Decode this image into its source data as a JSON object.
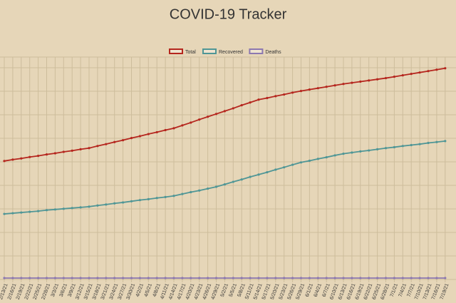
{
  "chart_data": {
    "type": "line",
    "title": "COVID-19 Tracker",
    "categories": [
      "2/13/21",
      "2/16/21",
      "2/19/21",
      "2/22/21",
      "2/25/21",
      "2/28/21",
      "3/3/21",
      "3/6/21",
      "3/9/21",
      "3/12/21",
      "3/15/21",
      "3/18/21",
      "3/21/21",
      "3/24/21",
      "3/27/21",
      "3/30/21",
      "4/2/21",
      "4/5/21",
      "4/8/21",
      "4/11/21",
      "4/14/21",
      "4/17/21",
      "4/20/21",
      "4/23/21",
      "4/26/21",
      "4/29/21",
      "5/2/21",
      "5/5/21",
      "5/8/21",
      "5/11/21",
      "5/14/21",
      "5/17/21",
      "5/20/21",
      "5/23/21",
      "5/26/21",
      "5/29/21",
      "6/1/21",
      "6/4/21",
      "6/7/21",
      "6/10/21",
      "6/13/21",
      "6/16/21",
      "6/19/21",
      "6/22/21",
      "6/25/21",
      "6/28/21",
      "7/1/21",
      "7/4/21",
      "7/7/21",
      "7/10/21",
      "7/13/21",
      "7/16/21",
      "7/19/21"
    ],
    "series": [
      {
        "name": "Total",
        "color": "#b5261e",
        "values": [
          5.06,
          5.12,
          5.17,
          5.23,
          5.28,
          5.34,
          5.39,
          5.45,
          5.5,
          5.56,
          5.61,
          5.7,
          5.78,
          5.87,
          5.95,
          6.04,
          6.12,
          6.21,
          6.29,
          6.38,
          6.46,
          6.58,
          6.7,
          6.83,
          6.95,
          7.07,
          7.19,
          7.31,
          7.44,
          7.56,
          7.68,
          7.75,
          7.83,
          7.9,
          7.98,
          8.05,
          8.11,
          8.17,
          8.23,
          8.29,
          8.35,
          8.4,
          8.45,
          8.5,
          8.55,
          8.6,
          8.66,
          8.72,
          8.78,
          8.84,
          8.9,
          8.96,
          9.02
        ]
      },
      {
        "name": "Recovered",
        "color": "#4f9696",
        "values": [
          2.8,
          2.83,
          2.86,
          2.89,
          2.92,
          2.96,
          2.99,
          3.02,
          3.05,
          3.08,
          3.11,
          3.16,
          3.2,
          3.25,
          3.29,
          3.34,
          3.39,
          3.43,
          3.48,
          3.52,
          3.57,
          3.65,
          3.73,
          3.8,
          3.88,
          3.96,
          4.06,
          4.17,
          4.27,
          4.38,
          4.48,
          4.58,
          4.69,
          4.79,
          4.9,
          5.0,
          5.07,
          5.15,
          5.22,
          5.3,
          5.37,
          5.42,
          5.47,
          5.51,
          5.56,
          5.61,
          5.65,
          5.7,
          5.74,
          5.78,
          5.83,
          5.87,
          5.91
        ]
      },
      {
        "name": "Deaths",
        "color": "#8c78b0",
        "values": [
          0.06,
          0.06,
          0.06,
          0.06,
          0.06,
          0.06,
          0.06,
          0.06,
          0.06,
          0.06,
          0.06,
          0.06,
          0.06,
          0.06,
          0.06,
          0.06,
          0.06,
          0.06,
          0.06,
          0.06,
          0.06,
          0.06,
          0.06,
          0.06,
          0.06,
          0.06,
          0.06,
          0.06,
          0.06,
          0.06,
          0.06,
          0.06,
          0.06,
          0.06,
          0.06,
          0.06,
          0.06,
          0.06,
          0.06,
          0.06,
          0.06,
          0.06,
          0.06,
          0.06,
          0.06,
          0.06,
          0.06,
          0.06,
          0.06,
          0.06,
          0.06,
          0.06,
          0.06
        ]
      }
    ],
    "ylim": [
      0,
      9.5
    ],
    "grid": true,
    "legend": "top"
  }
}
